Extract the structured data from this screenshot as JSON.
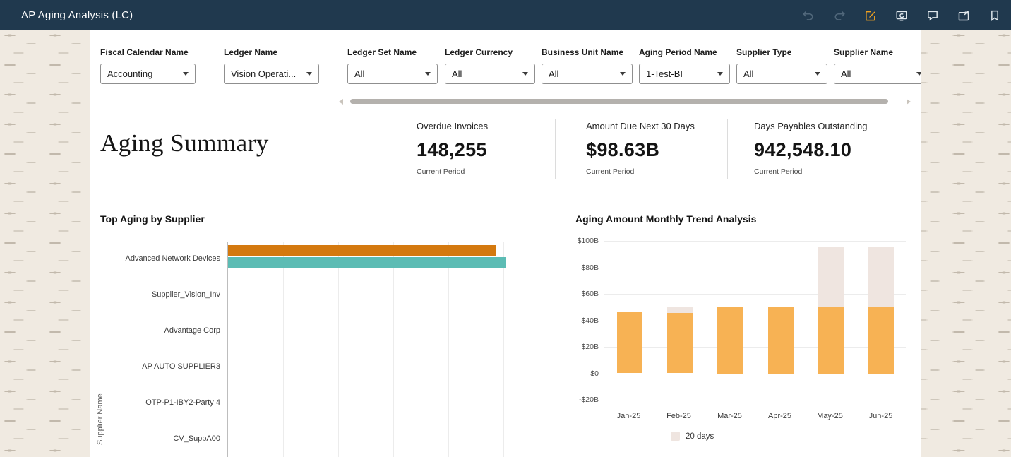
{
  "app": {
    "title": "AP Aging Analysis (LC)",
    "toolbar_icons": [
      "undo-icon",
      "redo-icon",
      "edit-icon",
      "present-icon",
      "comment-icon",
      "open-window-icon",
      "bookmark-icon"
    ]
  },
  "colors": {
    "header_bg": "#20394e",
    "accent_edit": "#f0a11f",
    "bar_orange": "#d4790f",
    "bar_teal": "#5cbcb4",
    "trend_orange": "#f7b254",
    "trend_gray": "#efe5e0",
    "canvas_bg": "#ffffff",
    "page_bg": "#f0eae1"
  },
  "filters": [
    {
      "label": "Fiscal Calendar Name",
      "value": "Accounting"
    },
    {
      "label": "Ledger Name",
      "value": "Vision Operati..."
    },
    {
      "label": "Ledger Set Name",
      "value": "All"
    },
    {
      "label": "Ledger Currency",
      "value": "All"
    },
    {
      "label": "Business Unit Name",
      "value": "All"
    },
    {
      "label": "Aging Period Name",
      "value": "1-Test-BI"
    },
    {
      "label": "Supplier Type",
      "value": "All"
    },
    {
      "label": "Supplier Name",
      "value": "All"
    }
  ],
  "summary": {
    "title": "Aging Summary",
    "kpis": [
      {
        "label": "Overdue Invoices",
        "value": "148,255",
        "caption": "Current Period"
      },
      {
        "label": "Amount Due Next 30 Days",
        "value": "$98.63B",
        "caption": "Current Period"
      },
      {
        "label": "Days Payables Outstanding",
        "value": "942,548.10",
        "caption": "Current Period"
      }
    ]
  },
  "chart_data": [
    {
      "type": "bar",
      "orientation": "horizontal",
      "title": "Top Aging by Supplier",
      "ylabel": "Supplier Name",
      "categories": [
        "Advanced Network Devices",
        "Supplier_Vision_Inv",
        "Advantage Corp",
        "AP AUTO SUPPLIER3",
        "OTP-P1-IBY2-Party 4",
        "CV_SuppA00"
      ],
      "series": [
        {
          "name": "",
          "color": "#d4790f",
          "values": [
            97,
            0,
            0,
            0,
            0,
            0
          ]
        },
        {
          "name": "",
          "color": "#5cbcb4",
          "values": [
            101,
            0,
            0,
            0,
            0,
            0
          ]
        }
      ],
      "xlim": [
        0,
        115
      ],
      "grid": "vertical"
    },
    {
      "type": "bar",
      "stacked": true,
      "title": "Aging Amount Monthly Trend Analysis",
      "categories": [
        "Jan-25",
        "Feb-25",
        "Mar-25",
        "Apr-25",
        "May-25",
        "Jun-25"
      ],
      "series": [
        {
          "name": "",
          "color": "#f7b254",
          "values": [
            46,
            46,
            50,
            50,
            50,
            50
          ]
        },
        {
          "name": "20 days",
          "color": "#efe5e0",
          "values": [
            0,
            4,
            0,
            0,
            45,
            45
          ]
        }
      ],
      "ylim": [
        -20,
        100
      ],
      "yticks": [
        "$100B",
        "$80B",
        "$60B",
        "$40B",
        "$20B",
        "$0",
        "-$20B"
      ],
      "ytick_values": [
        100,
        80,
        60,
        40,
        20,
        0,
        -20
      ],
      "legend": [
        {
          "label": "20 days",
          "color": "#efe5e0"
        }
      ],
      "legend_position": "bottom"
    }
  ]
}
